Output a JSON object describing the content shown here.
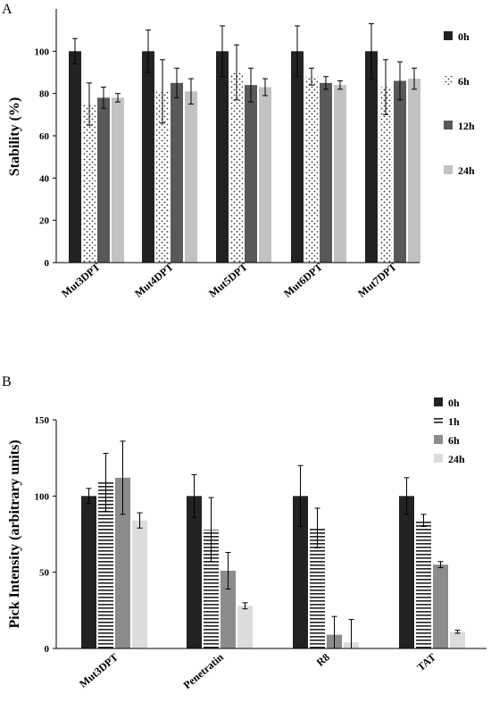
{
  "colors": {
    "c0h": "#222222",
    "c6hA": "#ffffff",
    "c12h": "#595959",
    "c24hA": "#c2c2c2",
    "c1h": "#ffffff",
    "c6hB": "#8c8c8c",
    "c24hB": "#dcdcdc",
    "pattern_stroke": "#333333"
  },
  "chart_data": [
    {
      "panel_label": "A",
      "type": "bar",
      "ylabel": "Stability (%)",
      "ylim": [
        0,
        120
      ],
      "yticks": [
        "0",
        "20",
        "40",
        "60",
        "80",
        "100"
      ],
      "yticks_values": [
        0,
        20,
        40,
        60,
        80,
        100
      ],
      "categories": [
        "Mut3DPT",
        "Mut4DPT",
        "Mut5DPT",
        "Mut6DPT",
        "Mut7DPT"
      ],
      "legend_position": "right",
      "series": [
        {
          "name": "0h",
          "pattern": "solid-dark",
          "values": [
            100,
            100,
            100,
            100,
            100
          ],
          "errors": [
            6,
            10,
            12,
            12,
            13
          ]
        },
        {
          "name": "6h",
          "pattern": "dots",
          "values": [
            75,
            81,
            90,
            88,
            83
          ],
          "errors": [
            10,
            15,
            13,
            4,
            13
          ]
        },
        {
          "name": "12h",
          "pattern": "solid-mid",
          "values": [
            78,
            85,
            84,
            85,
            86
          ],
          "errors": [
            5,
            7,
            8,
            3,
            9
          ]
        },
        {
          "name": "24h",
          "pattern": "solid-light",
          "values": [
            78,
            81,
            83,
            84,
            87
          ],
          "errors": [
            2,
            6,
            4,
            2,
            5
          ]
        }
      ]
    },
    {
      "panel_label": "B",
      "type": "bar",
      "ylabel": "Pick Intensity (arbitrary units)",
      "ylim": [
        0,
        150
      ],
      "yticks": [
        "0",
        "50",
        "100",
        "150"
      ],
      "yticks_values": [
        0,
        50,
        100,
        150
      ],
      "categories": [
        "Mut3DPT",
        "Penetratin",
        "R8",
        "TAT"
      ],
      "legend_position": "top-right",
      "series": [
        {
          "name": "0h",
          "pattern": "solid-dark",
          "values": [
            100,
            100,
            100,
            100
          ],
          "errors": [
            5,
            14,
            20,
            12
          ]
        },
        {
          "name": "1h",
          "pattern": "hlines",
          "values": [
            109,
            78,
            79,
            84
          ],
          "errors": [
            19,
            21,
            13,
            4
          ]
        },
        {
          "name": "6h",
          "pattern": "solid-mid",
          "values": [
            112,
            51,
            9,
            55
          ],
          "errors": [
            24,
            12,
            12,
            2
          ]
        },
        {
          "name": "24h",
          "pattern": "solid-light",
          "values": [
            84,
            28,
            4,
            11
          ],
          "errors": [
            5,
            2,
            15,
            1
          ]
        }
      ]
    }
  ]
}
